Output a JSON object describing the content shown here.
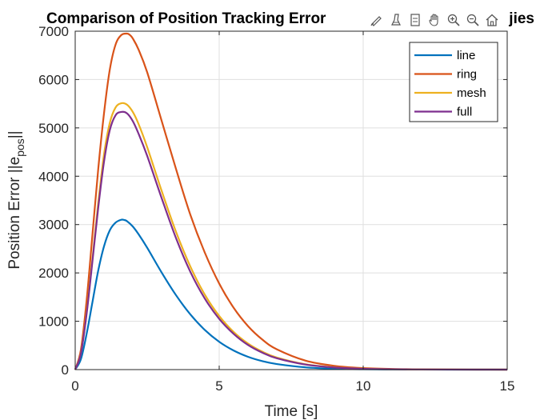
{
  "chart_data": {
    "type": "line",
    "title": "Comparison of Position Tracking Error",
    "title_tail": "jies",
    "xlabel": "Time [s]",
    "ylabel_main": "Position Error ||e",
    "ylabel_sub": "pos",
    "ylabel_end": "||",
    "xlim": [
      0,
      15
    ],
    "ylim": [
      0,
      7000
    ],
    "xticks": [
      0,
      5,
      10,
      15
    ],
    "yticks": [
      0,
      1000,
      2000,
      3000,
      4000,
      5000,
      6000,
      7000
    ],
    "grid": true,
    "legend_position": "top-right",
    "series": [
      {
        "name": "line",
        "color": "#0072BD",
        "x": [
          0,
          0.2,
          0.4,
          0.6,
          0.8,
          1.0,
          1.2,
          1.4,
          1.6,
          1.7,
          1.8,
          2.0,
          2.2,
          2.5,
          3.0,
          3.5,
          4.0,
          4.5,
          5.0,
          5.5,
          6.0,
          6.5,
          7.0,
          8.0,
          9.0,
          10.0,
          11.0,
          12.0,
          13.0,
          14.0,
          15.0
        ],
        "values": [
          0,
          220,
          750,
          1400,
          2050,
          2550,
          2880,
          3040,
          3100,
          3095,
          3070,
          2960,
          2800,
          2520,
          2010,
          1540,
          1140,
          820,
          575,
          395,
          265,
          175,
          115,
          47,
          18,
          7,
          3,
          1,
          0,
          0,
          0
        ]
      },
      {
        "name": "ring",
        "color": "#D95319",
        "x": [
          0,
          0.2,
          0.4,
          0.6,
          0.8,
          1.0,
          1.2,
          1.4,
          1.6,
          1.8,
          1.9,
          2.0,
          2.2,
          2.5,
          3.0,
          3.5,
          4.0,
          4.5,
          5.0,
          5.5,
          6.0,
          6.5,
          7.0,
          8.0,
          9.0,
          10.0,
          11.0,
          12.0,
          13.0,
          14.0,
          15.0
        ],
        "values": [
          0,
          420,
          1450,
          2800,
          4150,
          5300,
          6200,
          6720,
          6920,
          6950,
          6920,
          6850,
          6620,
          6150,
          5150,
          4150,
          3200,
          2420,
          1780,
          1280,
          900,
          620,
          420,
          185,
          78,
          32,
          13,
          5,
          2,
          1,
          0
        ]
      },
      {
        "name": "mesh",
        "color": "#EDB120",
        "x": [
          0,
          0.2,
          0.4,
          0.6,
          0.8,
          1.0,
          1.2,
          1.4,
          1.6,
          1.8,
          2.0,
          2.2,
          2.5,
          3.0,
          3.5,
          4.0,
          4.5,
          5.0,
          5.5,
          6.0,
          6.5,
          7.0,
          8.0,
          9.0,
          10.0,
          11.0,
          12.0,
          13.0,
          14.0,
          15.0
        ],
        "values": [
          0,
          350,
          1200,
          2300,
          3450,
          4450,
          5100,
          5420,
          5510,
          5480,
          5330,
          5080,
          4600,
          3700,
          2850,
          2130,
          1550,
          1110,
          780,
          540,
          370,
          250,
          110,
          46,
          19,
          8,
          3,
          1,
          0,
          0
        ]
      },
      {
        "name": "full",
        "color": "#7E2F8E",
        "x": [
          0,
          0.2,
          0.4,
          0.6,
          0.8,
          1.0,
          1.2,
          1.4,
          1.6,
          1.8,
          2.0,
          2.2,
          2.5,
          3.0,
          3.5,
          4.0,
          4.5,
          5.0,
          5.5,
          6.0,
          6.5,
          7.0,
          8.0,
          9.0,
          10.0,
          11.0,
          12.0,
          13.0,
          14.0,
          15.0
        ],
        "values": [
          0,
          340,
          1170,
          2250,
          3350,
          4300,
          4950,
          5260,
          5330,
          5300,
          5140,
          4880,
          4420,
          3550,
          2720,
          2020,
          1470,
          1050,
          740,
          510,
          350,
          235,
          104,
          43,
          17,
          7,
          3,
          1,
          0,
          0
        ]
      }
    ]
  },
  "toolbar": {
    "icons": [
      "brush-icon",
      "data-tips-icon",
      "legend-icon",
      "pan-icon",
      "zoom-in-icon",
      "zoom-out-icon",
      "home-icon"
    ]
  }
}
